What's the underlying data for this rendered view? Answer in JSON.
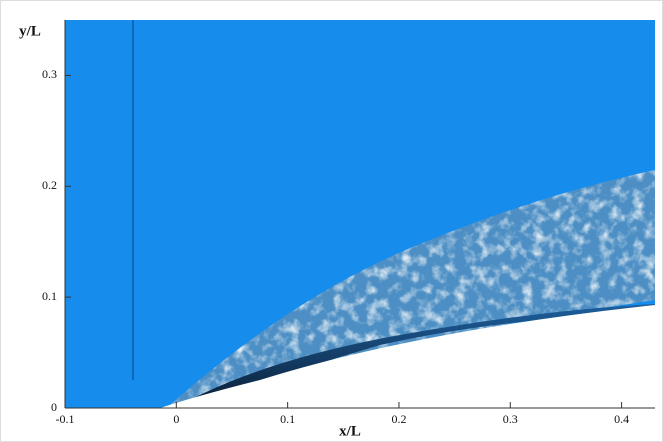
{
  "chart_data": {
    "type": "field",
    "x_label": "x/L",
    "y_label": "y/L",
    "xlim": [
      -0.1,
      0.43
    ],
    "ylim": [
      0,
      0.35
    ],
    "xticks": [
      -0.1,
      0,
      0.1,
      0.2,
      0.3,
      0.4
    ],
    "yticks": [
      0,
      0.1,
      0.2,
      0.3
    ]
  }
}
